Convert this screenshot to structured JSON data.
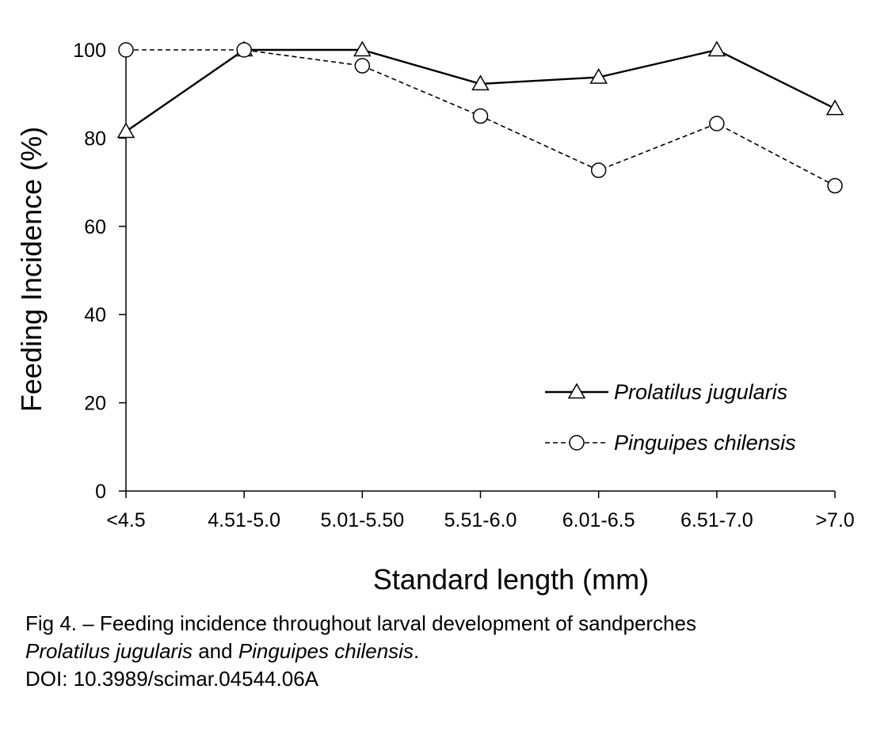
{
  "chart_data": {
    "type": "line",
    "categories": [
      "<4.5",
      "4.51-5.0",
      "5.01-5.50",
      "5.51-6.0",
      "6.01-6.5",
      "6.51-7.0",
      ">7.0"
    ],
    "series": [
      {
        "name": "Prolatilus jugularis",
        "marker": "triangle",
        "line": "solid",
        "values": [
          81.5,
          100,
          100,
          92.3,
          93.8,
          100,
          86.7
        ]
      },
      {
        "name": "Pinguipes chilensis",
        "marker": "circle",
        "line": "dashed",
        "values": [
          100,
          100,
          96.4,
          85,
          72.7,
          83.3,
          69.2
        ]
      }
    ],
    "xlabel": "Standard length (mm)",
    "ylabel": "Feeding Incidence (%)",
    "ylim": [
      0,
      100
    ],
    "yticks": [
      0,
      20,
      40,
      60,
      80,
      100
    ],
    "grid": false,
    "legend_position": "bottom-right"
  },
  "caption": {
    "line1": "Fig 4. – Feeding incidence throughout larval development of sandperches",
    "species1": "Prolatilus jugularis",
    "and": " and ",
    "species2": "Pinguipes chilensis",
    "period": ".",
    "doi": "DOI: 10.3989/scimar.04544.06A"
  }
}
